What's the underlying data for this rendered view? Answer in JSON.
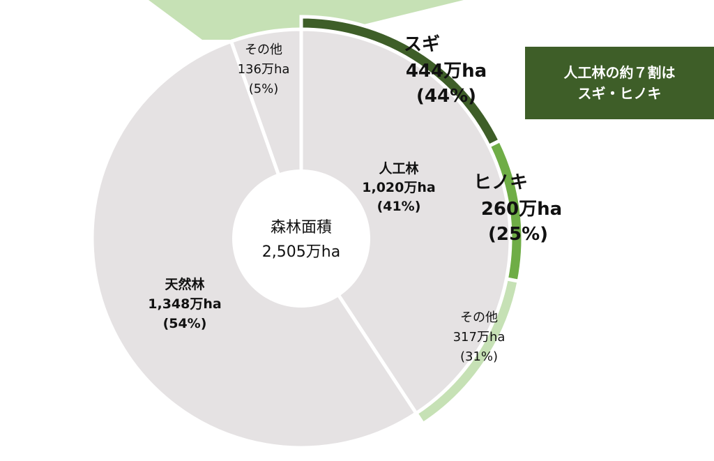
{
  "chart_data": {
    "type": "pie",
    "center": {
      "title": "森林面積",
      "total": "2,505万ha"
    },
    "inner_ring": [
      {
        "name": "人工林",
        "value": 1020,
        "value_label": "1,020万ha",
        "pct_label": "(41%)",
        "color": "#e5e2e3"
      },
      {
        "name": "天然林",
        "value": 1348,
        "value_label": "1,348万ha",
        "pct_label": "(54%)",
        "color": "#e5e2e3"
      },
      {
        "name": "その他",
        "value": 136,
        "value_label": "136万ha",
        "pct_label": "(5%)",
        "color": "#e5e2e3"
      }
    ],
    "outer_ring": [
      {
        "name": "スギ",
        "value": 444,
        "value_label": "444万ha",
        "pct_label": "(44%)",
        "color": "#3e5e28"
      },
      {
        "name": "ヒノキ",
        "value": 260,
        "value_label": "260万ha",
        "pct_label": "(25%)",
        "color": "#6fad46"
      },
      {
        "name": "その他",
        "value": 317,
        "value_label": "317万ha",
        "pct_label": "(31%)",
        "color": "#c6e1b5"
      }
    ],
    "top_wedge_color": "#c6e1b5"
  },
  "callout": {
    "line1": "人工林の約７割は",
    "line2": "スギ・ヒノキ"
  }
}
